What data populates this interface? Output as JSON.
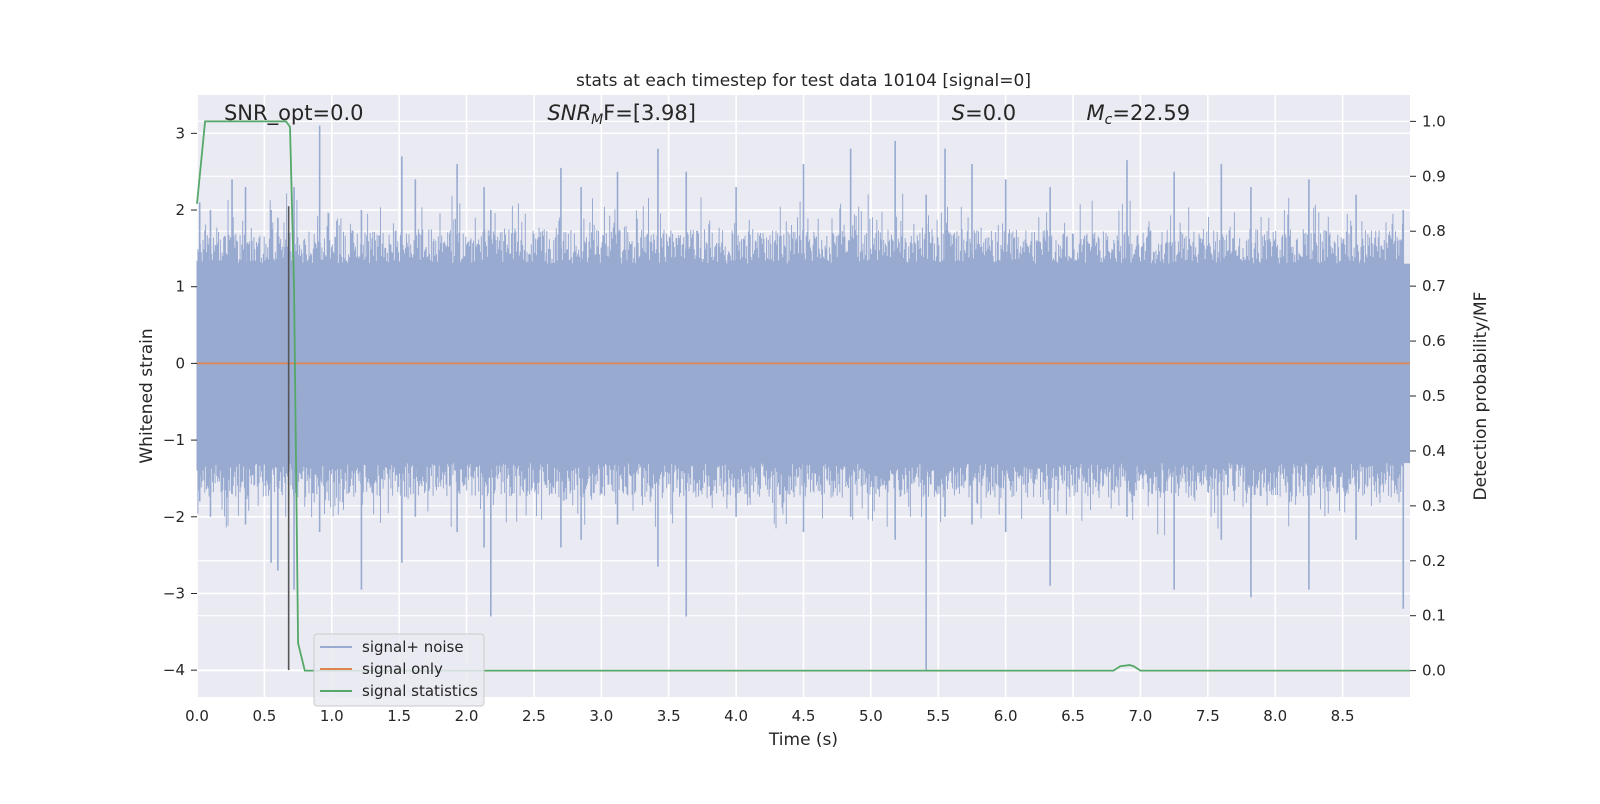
{
  "chart_data": {
    "type": "line",
    "title": "stats at each timestep for test data 10104 [signal=0]",
    "xlabel": "Time (s)",
    "ylabel": "Whitened strain",
    "ylabel_right": "Detection probability/MF",
    "xlim": [
      0.0,
      9.0
    ],
    "ylim": [
      -4.35,
      3.5
    ],
    "ylim_right": [
      -0.048,
      1.048
    ],
    "x_ticks": [
      0.0,
      0.5,
      1.0,
      1.5,
      2.0,
      2.5,
      3.0,
      3.5,
      4.0,
      4.5,
      5.0,
      5.5,
      6.0,
      6.5,
      7.0,
      7.5,
      8.0,
      8.5
    ],
    "x_tick_labels": [
      "0.0",
      "0.5",
      "1.0",
      "1.5",
      "2.0",
      "2.5",
      "3.0",
      "3.5",
      "4.0",
      "4.5",
      "5.0",
      "5.5",
      "6.0",
      "6.5",
      "7.0",
      "7.5",
      "8.0",
      "8.5"
    ],
    "y_ticks": [
      3,
      2,
      1,
      0,
      -1,
      -2,
      -3,
      -4
    ],
    "y_tick_labels": [
      "3",
      "2",
      "1",
      "0",
      "−1",
      "−2",
      "−3",
      "−4"
    ],
    "y_right_ticks": [
      1.0,
      0.9,
      0.8,
      0.7,
      0.6,
      0.5,
      0.4,
      0.3,
      0.2,
      0.1,
      0.0
    ],
    "y_right_tick_labels": [
      "1.0",
      "0.9",
      "0.8",
      "0.7",
      "0.6",
      "0.5",
      "0.4",
      "0.3",
      "0.2",
      "0.1",
      "0.0"
    ],
    "grid": true,
    "legend_position": "lower-left",
    "annotations": [
      {
        "label": "SNR_opt=0.0",
        "x": 0.2,
        "y": 3.2
      },
      {
        "label_math": "SNR",
        "label_sub": "M",
        "label_rest": "F=[3.98]",
        "x": 2.6,
        "y": 3.2
      },
      {
        "label_math": "S",
        "label_sub": "",
        "label_rest": "=0.0",
        "x": 5.6,
        "y": 3.2
      },
      {
        "label_math": "M",
        "label_sub": "c",
        "label_rest": "=22.59",
        "x": 6.6,
        "y": 3.2
      }
    ],
    "vertical_line": {
      "x": 0.68,
      "y_from": -4.0,
      "y_to": 2.05,
      "color": "#555555"
    },
    "series": [
      {
        "name": "signal+ noise",
        "axis": "left",
        "color": "#98aad0",
        "envelope_core": 1.3,
        "spikes": [
          {
            "x": 0.02,
            "hi": 2.1,
            "lo": -1.8
          },
          {
            "x": 0.1,
            "hi": 2.0,
            "lo": -2.0
          },
          {
            "x": 0.26,
            "hi": 2.4,
            "lo": -1.7
          },
          {
            "x": 0.36,
            "hi": 2.3,
            "lo": -2.1
          },
          {
            "x": 0.55,
            "hi": 2.0,
            "lo": -2.6
          },
          {
            "x": 0.6,
            "hi": 1.9,
            "lo": -2.7
          },
          {
            "x": 0.72,
            "hi": 2.3,
            "lo": -2.95
          },
          {
            "x": 0.91,
            "hi": 3.1,
            "lo": -2.2
          },
          {
            "x": 1.22,
            "hi": 2.0,
            "lo": -2.95
          },
          {
            "x": 1.52,
            "hi": 2.7,
            "lo": -2.6
          },
          {
            "x": 1.62,
            "hi": 2.4,
            "lo": -2.0
          },
          {
            "x": 1.93,
            "hi": 2.6,
            "lo": -2.2
          },
          {
            "x": 2.13,
            "hi": 2.3,
            "lo": -2.4
          },
          {
            "x": 2.18,
            "hi": 2.0,
            "lo": -3.3
          },
          {
            "x": 2.7,
            "hi": 2.55,
            "lo": -2.4
          },
          {
            "x": 2.85,
            "hi": 2.3,
            "lo": -2.3
          },
          {
            "x": 3.12,
            "hi": 2.5,
            "lo": -2.1
          },
          {
            "x": 3.42,
            "hi": 2.8,
            "lo": -2.65
          },
          {
            "x": 3.63,
            "hi": 2.5,
            "lo": -3.3
          },
          {
            "x": 4.0,
            "hi": 2.3,
            "lo": -2.0
          },
          {
            "x": 4.5,
            "hi": 2.6,
            "lo": -2.2
          },
          {
            "x": 4.85,
            "hi": 2.8,
            "lo": -2.0
          },
          {
            "x": 5.18,
            "hi": 2.9,
            "lo": -2.3
          },
          {
            "x": 5.41,
            "hi": 2.2,
            "lo": -4.0
          },
          {
            "x": 5.55,
            "hi": 2.8,
            "lo": -2.0
          },
          {
            "x": 5.75,
            "hi": 2.6,
            "lo": -2.1
          },
          {
            "x": 6.0,
            "hi": 2.4,
            "lo": -2.2
          },
          {
            "x": 6.33,
            "hi": 2.3,
            "lo": -2.9
          },
          {
            "x": 6.9,
            "hi": 2.65,
            "lo": -2.0
          },
          {
            "x": 7.25,
            "hi": 2.5,
            "lo": -2.95
          },
          {
            "x": 7.6,
            "hi": 2.6,
            "lo": -2.3
          },
          {
            "x": 7.82,
            "hi": 2.3,
            "lo": -3.05
          },
          {
            "x": 8.25,
            "hi": 2.4,
            "lo": -2.95
          },
          {
            "x": 8.6,
            "hi": 2.2,
            "lo": -2.3
          },
          {
            "x": 8.95,
            "hi": 2.0,
            "lo": -3.2
          }
        ]
      },
      {
        "name": "signal only",
        "axis": "left",
        "color": "#dd8452",
        "x": [
          0.0,
          9.0
        ],
        "y": [
          0.0,
          0.0
        ]
      },
      {
        "name": "signal statistics",
        "axis": "right",
        "color": "#55a868",
        "x": [
          0.0,
          0.06,
          0.12,
          0.3,
          0.5,
          0.66,
          0.69,
          0.72,
          0.75,
          0.8,
          1.0,
          2.0,
          3.0,
          4.0,
          5.0,
          6.0,
          6.8,
          6.85,
          6.92,
          6.95,
          7.0,
          7.5,
          8.0,
          9.0
        ],
        "y": [
          0.85,
          1.0,
          1.0,
          1.0,
          1.0,
          1.0,
          0.99,
          0.7,
          0.05,
          0.0,
          0.0,
          0.0,
          0.0,
          0.0,
          0.0,
          0.0,
          0.0,
          0.008,
          0.01,
          0.008,
          0.0,
          0.0,
          0.0,
          0.0
        ]
      }
    ]
  }
}
